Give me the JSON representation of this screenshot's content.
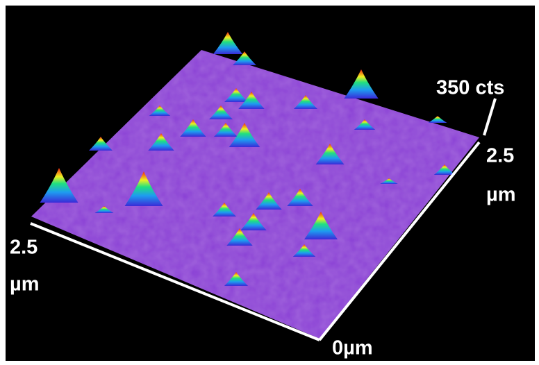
{
  "labels": {
    "z_max": "350 cts",
    "y_axis": [
      "2.5",
      "µm"
    ],
    "x_axis": [
      "2.5",
      "µm"
    ],
    "origin": "0µm"
  }
}
